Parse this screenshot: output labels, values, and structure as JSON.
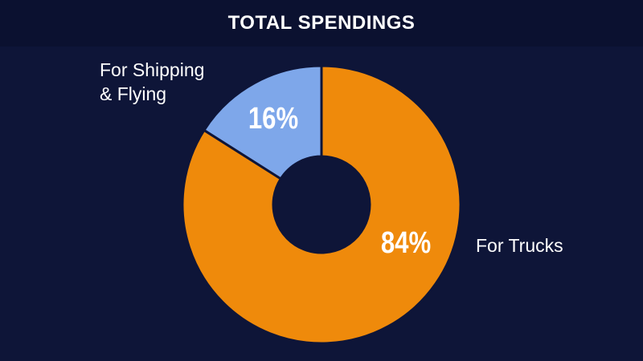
{
  "title": "TOTAL SPENDINGS",
  "chart_data": {
    "type": "pie",
    "title": "TOTAL SPENDINGS",
    "slices": [
      {
        "label": "For Trucks",
        "value": 84,
        "value_label": "84%",
        "color": "#ef8a0b"
      },
      {
        "label": "For Shipping\n& Flying",
        "value": 16,
        "value_label": "16%",
        "color": "#7ea7ea"
      }
    ],
    "donut": true
  },
  "colors": {
    "background": "#0e1538",
    "title_bar": "#0b1130",
    "text": "#ffffff"
  }
}
